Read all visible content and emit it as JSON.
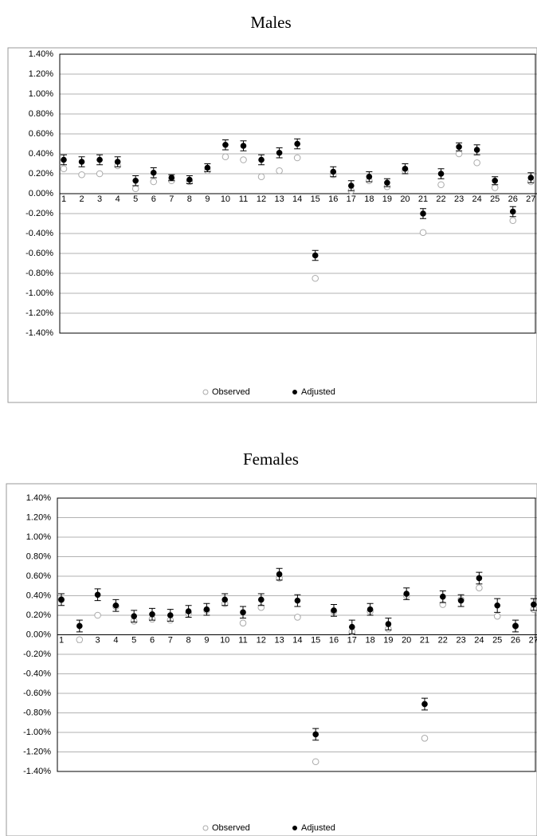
{
  "chart_data": [
    {
      "type": "scatter",
      "title": "Males",
      "categories": [
        "1",
        "2",
        "3",
        "4",
        "5",
        "6",
        "7",
        "8",
        "9",
        "10",
        "11",
        "12",
        "13",
        "14",
        "15",
        "16",
        "17",
        "18",
        "19",
        "20",
        "21",
        "22",
        "23",
        "24",
        "25",
        "26",
        "27"
      ],
      "series": [
        {
          "name": "Observed",
          "color": "#aaaaaa",
          "values": [
            0.25,
            0.19,
            0.2,
            0.28,
            0.05,
            0.12,
            0.13,
            0.12,
            0.23,
            0.37,
            0.34,
            0.17,
            0.23,
            0.36,
            -0.85,
            0.19,
            0.03,
            0.13,
            0.07,
            0.23,
            -0.39,
            0.09,
            0.4,
            0.31,
            0.06,
            -0.27,
            0.12
          ]
        },
        {
          "name": "Adjusted",
          "color": "#000000",
          "values": [
            0.34,
            0.32,
            0.34,
            0.32,
            0.13,
            0.21,
            0.16,
            0.14,
            0.26,
            0.49,
            0.48,
            0.34,
            0.41,
            0.5,
            -0.62,
            0.22,
            0.08,
            0.17,
            0.11,
            0.25,
            -0.2,
            0.2,
            0.47,
            0.44,
            0.13,
            -0.18,
            0.16
          ],
          "errors": [
            0.05,
            0.05,
            0.05,
            0.05,
            0.05,
            0.05,
            0.03,
            0.04,
            0.04,
            0.05,
            0.05,
            0.05,
            0.05,
            0.05,
            0.05,
            0.05,
            0.05,
            0.05,
            0.04,
            0.05,
            0.05,
            0.05,
            0.04,
            0.05,
            0.04,
            0.05,
            0.05
          ]
        }
      ],
      "ylim": [
        -1.4,
        1.4
      ],
      "yticks": [
        {
          "value": 1.4,
          "label": "1.40%"
        },
        {
          "value": 1.2,
          "label": "1.20%"
        },
        {
          "value": 1.0,
          "label": "1.00%"
        },
        {
          "value": 0.8,
          "label": "0.80%"
        },
        {
          "value": 0.6,
          "label": "0.60%"
        },
        {
          "value": 0.4,
          "label": "0.40%"
        },
        {
          "value": 0.2,
          "label": "0.20%"
        },
        {
          "value": 0,
          "label": "0.00%"
        },
        {
          "value": -0.2,
          "label": "-0.20%"
        },
        {
          "value": -0.4,
          "label": "-0.40%"
        },
        {
          "value": -0.6,
          "label": "-0.60%"
        },
        {
          "value": -0.8,
          "label": "-0.80%"
        },
        {
          "value": -1.0,
          "label": "-1.00%"
        },
        {
          "value": -1.2,
          "label": "-1.20%"
        },
        {
          "value": -1.4,
          "label": "-1.40%"
        }
      ],
      "grid": true,
      "legend": "bottom"
    },
    {
      "type": "scatter",
      "title": "Females",
      "categories": [
        "1",
        "2",
        "3",
        "4",
        "5",
        "6",
        "7",
        "8",
        "9",
        "10",
        "11",
        "12",
        "13",
        "14",
        "15",
        "16",
        "17",
        "18",
        "19",
        "20",
        "21",
        "22",
        "23",
        "24",
        "25",
        "26",
        "27"
      ],
      "series": [
        {
          "name": "Observed",
          "color": "#aaaaaa",
          "values": [
            0.36,
            -0.05,
            0.2,
            0.29,
            0.14,
            0.16,
            0.15,
            0.22,
            0.25,
            0.32,
            0.12,
            0.28,
            0.58,
            0.18,
            -1.3,
            0.24,
            0.03,
            0.24,
            0.06,
            0.4,
            -1.06,
            0.31,
            0.36,
            0.48,
            0.19,
            0.09,
            0.26
          ]
        },
        {
          "name": "Adjusted",
          "color": "#000000",
          "values": [
            0.36,
            0.09,
            0.41,
            0.3,
            0.19,
            0.21,
            0.2,
            0.24,
            0.26,
            0.36,
            0.23,
            0.36,
            0.62,
            0.35,
            -1.02,
            0.25,
            0.08,
            0.26,
            0.11,
            0.42,
            -0.71,
            0.39,
            0.35,
            0.58,
            0.3,
            0.09,
            0.31
          ],
          "errors": [
            0.06,
            0.06,
            0.06,
            0.06,
            0.06,
            0.06,
            0.06,
            0.06,
            0.06,
            0.06,
            0.06,
            0.06,
            0.06,
            0.06,
            0.06,
            0.06,
            0.07,
            0.06,
            0.06,
            0.06,
            0.06,
            0.06,
            0.06,
            0.06,
            0.07,
            0.06,
            0.06
          ]
        }
      ],
      "ylim": [
        -1.4,
        1.4
      ],
      "yticks": [
        {
          "value": 1.4,
          "label": "1.40%"
        },
        {
          "value": 1.2,
          "label": "1.20%"
        },
        {
          "value": 1.0,
          "label": "1.00%"
        },
        {
          "value": 0.8,
          "label": "0.80%"
        },
        {
          "value": 0.6,
          "label": "0.60%"
        },
        {
          "value": 0.4,
          "label": "0.40%"
        },
        {
          "value": 0.2,
          "label": "0.20%"
        },
        {
          "value": 0,
          "label": "0.00%"
        },
        {
          "value": -0.2,
          "label": "-0.20%"
        },
        {
          "value": -0.4,
          "label": "-0.40%"
        },
        {
          "value": -0.6,
          "label": "-0.60%"
        },
        {
          "value": -0.8,
          "label": "-0.80%"
        },
        {
          "value": -1.0,
          "label": "-1.00%"
        },
        {
          "value": -1.2,
          "label": "-1.20%"
        },
        {
          "value": -1.4,
          "label": "-1.40%"
        }
      ],
      "grid": true,
      "legend": "bottom"
    }
  ]
}
